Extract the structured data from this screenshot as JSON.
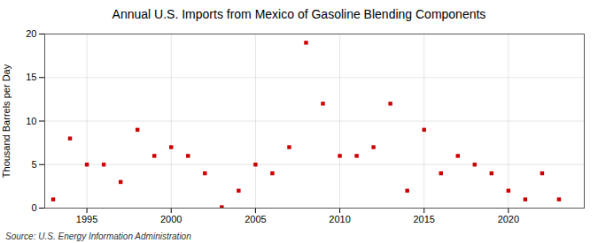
{
  "chart_data": {
    "type": "scatter",
    "title": "Annual U.S. Imports from Mexico of Gasoline Blending Components",
    "ylabel": "Thousand Barrels per Day",
    "source": "Source: U.S. Energy Information Administration",
    "x": [
      1993,
      1994,
      1995,
      1996,
      1997,
      1998,
      1999,
      2000,
      2001,
      2002,
      2003,
      2004,
      2005,
      2006,
      2007,
      2008,
      2009,
      2010,
      2011,
      2012,
      2013,
      2014,
      2015,
      2016,
      2017,
      2018,
      2019,
      2020,
      2021,
      2022,
      2023
    ],
    "values": [
      1.0,
      8.0,
      5.0,
      5.0,
      3.0,
      9.0,
      6.0,
      7.0,
      6.0,
      4.0,
      0.1,
      2.0,
      5.0,
      4.0,
      7.0,
      19.0,
      12.0,
      6.0,
      6.0,
      7.0,
      12.0,
      2.0,
      9.0,
      4.0,
      6.0,
      5.0,
      4.0,
      2.0,
      1.0,
      4.0,
      1.0
    ],
    "color": "#cc0000",
    "marker": "square",
    "xlim": [
      1992.5,
      2024.5
    ],
    "xticks": [
      1995,
      2000,
      2005,
      2010,
      2015,
      2020
    ],
    "ylim": [
      0,
      20
    ],
    "yticks": [
      0,
      5,
      10,
      15,
      20
    ],
    "grid": true
  }
}
